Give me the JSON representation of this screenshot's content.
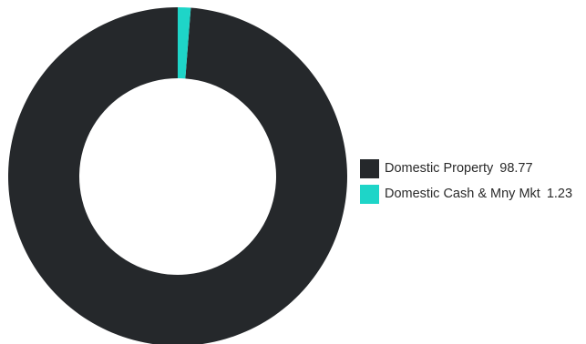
{
  "chart_data": {
    "type": "pie",
    "variant": "donut",
    "title": "",
    "series": [
      {
        "name": "Domestic Property",
        "value": 98.77,
        "value_label": "98.77",
        "color": "#25282b"
      },
      {
        "name": "Domestic Cash & Mny Mkt",
        "value": 1.23,
        "value_label": "1.23",
        "color": "#1ed5c8"
      }
    ],
    "legend_position": "right"
  }
}
